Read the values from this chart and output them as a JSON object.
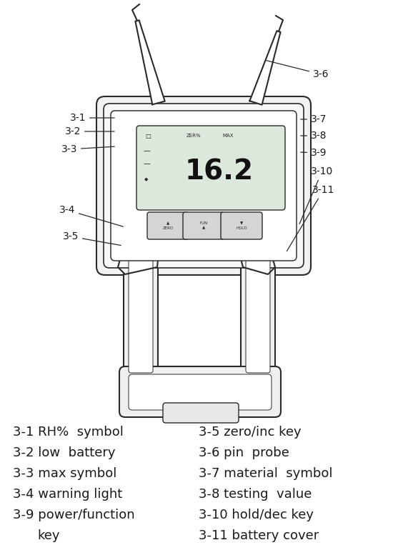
{
  "bg_color": "#ffffff",
  "line_color": "#2a2a2a",
  "text_color": "#1a1a1a",
  "font_size_label": 10,
  "font_size_legend": 13,
  "legend_left": [
    "3-1 RH%  symbol",
    "3-2 low  battery",
    "3-3 max symbol",
    "3-4 warning light",
    "3-9 power/function"
  ],
  "legend_left_extra": "       key",
  "legend_right": [
    "3-5 zero/inc key",
    "3-6 pin  probe",
    "3-7 material  symbol",
    "3-8 testing  value",
    "3-10 hold/dec key",
    "3-11 battery cover"
  ]
}
